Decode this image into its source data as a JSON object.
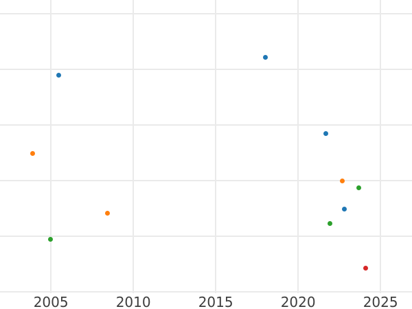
{
  "chart_data": {
    "type": "scatter",
    "title": "",
    "xlabel": "",
    "ylabel": "",
    "grid": true,
    "legend": false,
    "x_tick_labels": [
      "2005",
      "2010",
      "2015",
      "2020",
      "2025"
    ],
    "x_tick_years": [
      2005,
      2010,
      2015,
      2020,
      2025
    ],
    "x_range": [
      2001.91,
      2026.91
    ],
    "y_axis_unlabeled": true,
    "y_unit": "gridline-units (bottom visible gridline = 0, one unit per gridline)",
    "y_gridlines": [
      0,
      1,
      2,
      3,
      4,
      5
    ],
    "y_range": [
      -0.309,
      5.247
    ],
    "marker_diameter_px": 7,
    "gridline_color": "#eaeaea",
    "tick_label_color": "#3d3d3d",
    "background_color": "#ffffff",
    "series": [
      {
        "name": "blue",
        "color": "#1f77b4",
        "points": [
          {
            "x": 2005.49,
            "y": 3.9
          },
          {
            "x": 2018.02,
            "y": 4.21
          },
          {
            "x": 2021.67,
            "y": 2.84
          },
          {
            "x": 2022.8,
            "y": 1.49
          }
        ]
      },
      {
        "name": "orange",
        "color": "#ff7f0e",
        "points": [
          {
            "x": 2003.9,
            "y": 2.49
          },
          {
            "x": 2008.42,
            "y": 1.41
          },
          {
            "x": 2022.66,
            "y": 1.99
          }
        ]
      },
      {
        "name": "green",
        "color": "#2ca02c",
        "points": [
          {
            "x": 2004.98,
            "y": 0.95
          },
          {
            "x": 2021.94,
            "y": 1.23
          },
          {
            "x": 2023.69,
            "y": 1.87
          }
        ]
      },
      {
        "name": "red",
        "color": "#d62728",
        "points": [
          {
            "x": 2024.1,
            "y": 0.42
          }
        ]
      }
    ]
  }
}
